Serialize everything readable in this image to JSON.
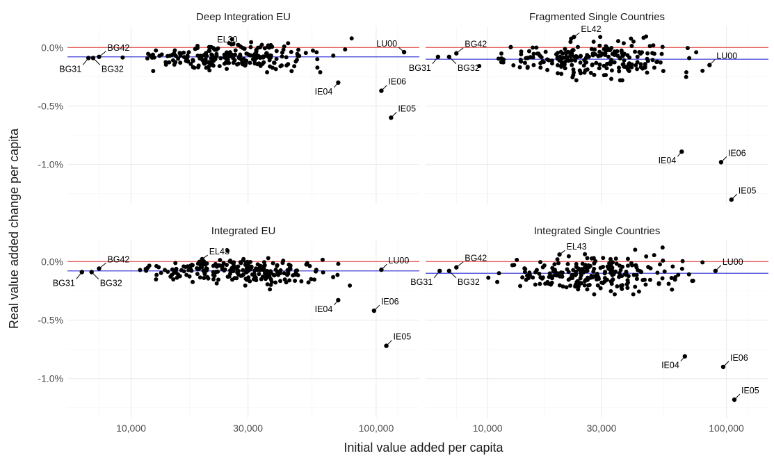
{
  "chart_data": {
    "type": "scatter",
    "xlabel": "Initial value added per capita",
    "ylabel": "Real value added change per capita",
    "x_scale": "log10",
    "xlim": [
      5500,
      150000
    ],
    "x_ticks": [
      10000,
      30000,
      100000
    ],
    "x_tick_labels": [
      "10,000",
      "30,000",
      "100,000"
    ],
    "reference_line_color": "#e8514e",
    "mean_line_color": "#2b2bd6",
    "point_color": "#000000",
    "panels": [
      {
        "title": "Deep Integration EU",
        "ylim": [
          -0.0134,
          0.0018
        ],
        "y_ticks": [
          0.0,
          -0.005,
          -0.01
        ],
        "y_tick_labels": [
          "0.0%",
          "-0.5%",
          "-1.0%"
        ],
        "reference_line_y": 0.0,
        "mean_line_y": -0.0008,
        "labeled_points": [
          {
            "label": "LU00",
            "x": 130000,
            "y": -0.0004
          },
          {
            "label": "IE04",
            "x": 70000,
            "y": -0.003
          },
          {
            "label": "IE06",
            "x": 105000,
            "y": -0.0037
          },
          {
            "label": "IE05",
            "x": 115000,
            "y": -0.006
          },
          {
            "label": "EL30",
            "x": 29000,
            "y": -0.0001
          },
          {
            "label": "BG42",
            "x": 7400,
            "y": -0.0008
          },
          {
            "label": "BG31",
            "x": 6700,
            "y": -0.0009
          },
          {
            "label": "BG32",
            "x": 7000,
            "y": -0.0009
          }
        ]
      },
      {
        "title": "Fragmented Single Countries",
        "ylim": [
          -0.0134,
          0.0018
        ],
        "y_ticks": [
          0.0,
          -0.005,
          -0.01
        ],
        "y_tick_labels": [
          "0.0%",
          "-0.5%",
          "-1.0%"
        ],
        "reference_line_y": 0.0,
        "mean_line_y": -0.001,
        "labeled_points": [
          {
            "label": "LU00",
            "x": 85000,
            "y": -0.0015
          },
          {
            "label": "IE04",
            "x": 65000,
            "y": -0.0089
          },
          {
            "label": "IE06",
            "x": 95000,
            "y": -0.0098
          },
          {
            "label": "IE05",
            "x": 105000,
            "y": -0.013
          },
          {
            "label": "EL42",
            "x": 23000,
            "y": 0.0009
          },
          {
            "label": "BG42",
            "x": 7400,
            "y": -0.0005
          },
          {
            "label": "BG31",
            "x": 6200,
            "y": -0.0008
          },
          {
            "label": "BG32",
            "x": 6900,
            "y": -0.0008
          }
        ]
      },
      {
        "title": "Integrated EU",
        "ylim": [
          -0.0134,
          0.0018
        ],
        "y_ticks": [
          0.0,
          -0.005,
          -0.01
        ],
        "y_tick_labels": [
          "0.0%",
          "-0.5%",
          "-1.0%"
        ],
        "reference_line_y": 0.0,
        "mean_line_y": -0.0008,
        "labeled_points": [
          {
            "label": "LU00",
            "x": 105000,
            "y": -0.0007
          },
          {
            "label": "IE04",
            "x": 70000,
            "y": -0.0033
          },
          {
            "label": "IE06",
            "x": 98000,
            "y": -0.0042
          },
          {
            "label": "IE05",
            "x": 110000,
            "y": -0.0072
          },
          {
            "label": "EL43",
            "x": 19500,
            "y": 0.0002
          },
          {
            "label": "BG42",
            "x": 7400,
            "y": -0.0006
          },
          {
            "label": "BG31",
            "x": 6300,
            "y": -0.0009
          },
          {
            "label": "BG32",
            "x": 6900,
            "y": -0.0009
          }
        ]
      },
      {
        "title": "Integrated Single Countries",
        "ylim": [
          -0.0134,
          0.0018
        ],
        "y_ticks": [
          0.0,
          -0.005,
          -0.01
        ],
        "y_tick_labels": [
          "0.0%",
          "-0.5%",
          "-1.0%"
        ],
        "reference_line_y": 0.0,
        "mean_line_y": -0.001,
        "labeled_points": [
          {
            "label": "LU00",
            "x": 90000,
            "y": -0.0008
          },
          {
            "label": "IE04",
            "x": 67000,
            "y": -0.0081
          },
          {
            "label": "IE06",
            "x": 97000,
            "y": -0.009
          },
          {
            "label": "IE05",
            "x": 108000,
            "y": -0.0118
          },
          {
            "label": "EL43",
            "x": 20000,
            "y": 0.0006
          },
          {
            "label": "BG42",
            "x": 7400,
            "y": -0.0005
          },
          {
            "label": "BG31",
            "x": 6300,
            "y": -0.0008
          },
          {
            "label": "BG32",
            "x": 6900,
            "y": -0.0008
          }
        ]
      }
    ]
  }
}
